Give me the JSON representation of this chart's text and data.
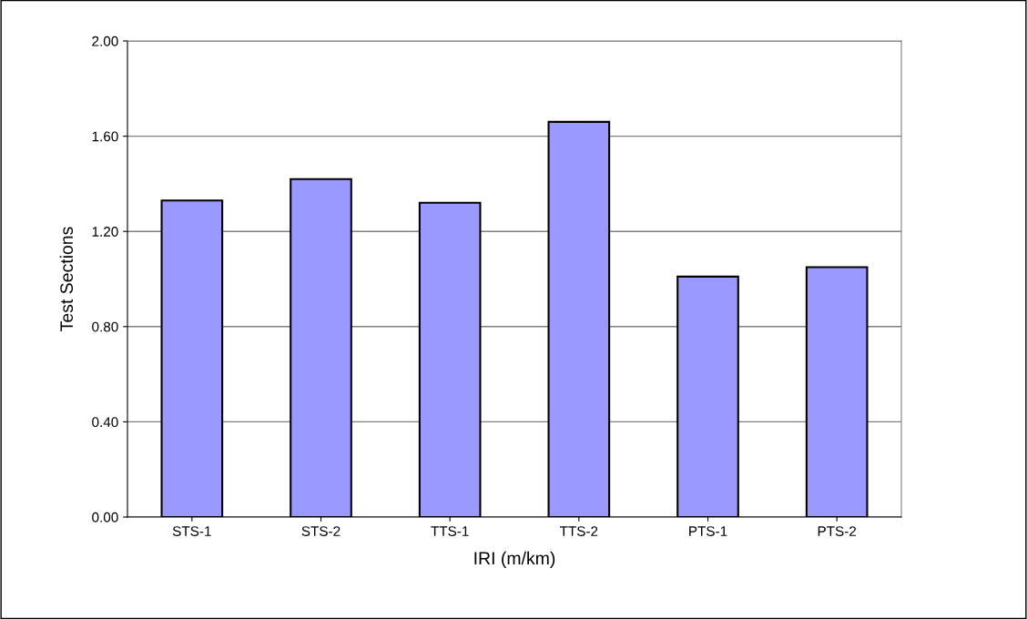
{
  "chart_data": {
    "type": "bar",
    "xlabel": "IRI (m/km)",
    "ylabel": "Test Sections",
    "categories": [
      "STS-1",
      "STS-2",
      "TTS-1",
      "TTS-2",
      "PTS-1",
      "PTS-2"
    ],
    "values": [
      1.33,
      1.42,
      1.32,
      1.66,
      1.01,
      1.05
    ],
    "color": "#9999ff",
    "ylim": [
      0,
      2
    ],
    "yticks": [
      {
        "value": 0,
        "label": "0.00"
      },
      {
        "value": 0.4,
        "label": "0.40"
      },
      {
        "value": 0.8,
        "label": "0.80"
      },
      {
        "value": 1.2,
        "label": "1.20"
      },
      {
        "value": 1.6,
        "label": "1.60"
      },
      {
        "value": 2,
        "label": "2.00"
      }
    ],
    "grid": "y",
    "legend": false
  }
}
